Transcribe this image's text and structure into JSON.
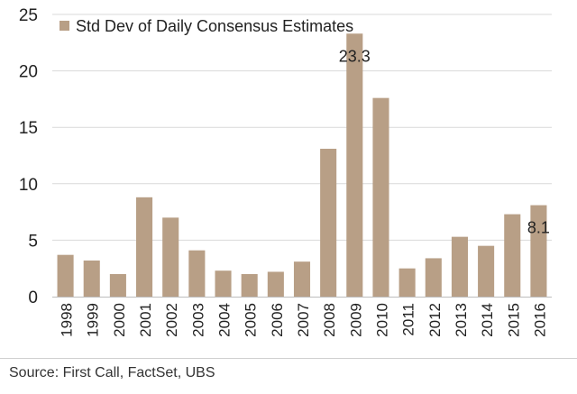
{
  "chart_data": {
    "type": "bar",
    "categories": [
      "1998",
      "1999",
      "2000",
      "2001",
      "2002",
      "2003",
      "2004",
      "2005",
      "2006",
      "2007",
      "2008",
      "2009",
      "2010",
      "2011",
      "2012",
      "2013",
      "2014",
      "2015",
      "2016"
    ],
    "values": [
      3.7,
      3.2,
      2.0,
      8.8,
      7.0,
      4.1,
      2.3,
      2.0,
      2.2,
      3.1,
      13.1,
      23.3,
      17.6,
      2.5,
      3.4,
      5.3,
      4.5,
      7.3,
      8.1
    ],
    "series_name": "Std Dev of Daily Consensus Estimates",
    "data_labels": [
      {
        "category": "2009",
        "text": "23.3"
      },
      {
        "category": "2016",
        "text": "8.1"
      }
    ],
    "ylim": [
      0,
      25
    ],
    "yticks": [
      0,
      5,
      10,
      15,
      20,
      25
    ],
    "grid": true,
    "legend_position": "top-left",
    "bar_color": "#b89f86",
    "grid_color": "#d9d9d9",
    "text_color": "#222222"
  },
  "source": "Source:  First Call, FactSet, UBS"
}
